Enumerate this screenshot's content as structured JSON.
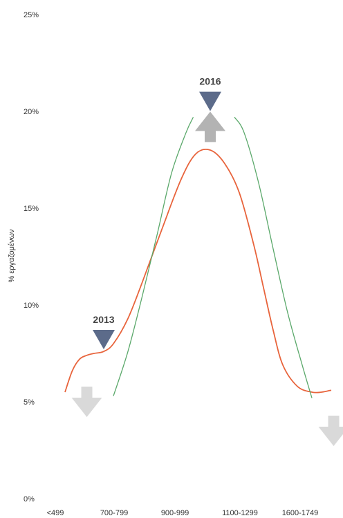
{
  "chart_data": {
    "type": "line",
    "ylabel": "% εργαζομένων",
    "ylim": [
      0,
      25
    ],
    "y_ticks": [
      "0%",
      "5%",
      "10%",
      "15%",
      "20%",
      "25%"
    ],
    "x_ticks": [
      "<499",
      "700-799",
      "900-999",
      "1100-1299",
      "1600-1749"
    ],
    "grid": false,
    "series": [
      {
        "color": "#e8643c",
        "x": [
          0,
          0.15,
          0.3,
          0.45,
          0.6,
          0.8,
          1.0,
          1.3,
          1.6,
          2.0,
          2.4,
          2.7,
          3.0,
          3.3,
          3.6,
          3.9,
          4.1,
          4.3,
          4.5,
          4.8,
          5.1,
          5.3,
          5.5
        ],
        "values": [
          5.5,
          6.6,
          7.2,
          7.4,
          7.5,
          7.6,
          8.0,
          9.3,
          11.2,
          13.9,
          16.5,
          17.8,
          18.0,
          17.3,
          15.8,
          13.1,
          10.9,
          8.7,
          6.9,
          5.8,
          5.5,
          5.5,
          5.6
        ]
      },
      {
        "color": "#5aa86a",
        "x": [
          1.0,
          1.3,
          1.6,
          1.9,
          2.2,
          2.5,
          2.65
        ],
        "values": [
          5.3,
          7.6,
          10.5,
          13.6,
          16.8,
          18.9,
          19.7
        ],
        "segment": "rise"
      },
      {
        "color": "#5aa86a",
        "x": [
          3.5,
          3.7,
          4.0,
          4.3,
          4.6,
          4.9,
          5.1
        ],
        "values": [
          19.7,
          18.9,
          16.3,
          12.9,
          9.6,
          6.9,
          5.2
        ],
        "segment": "fall"
      }
    ],
    "annotations": [
      {
        "text": "2013",
        "x": 0.8,
        "y": 8.0,
        "marker": "triangle-down",
        "color": "#5c6b8a"
      },
      {
        "text": "2016",
        "x": 3.0,
        "y": 20.3,
        "marker": "triangle-down",
        "color": "#5c6b8a"
      }
    ],
    "arrows": [
      {
        "direction": "down",
        "x": 0.45,
        "y": 5.0,
        "color": "#d9d9d9"
      },
      {
        "direction": "up",
        "x": 3.0,
        "y": 19.2,
        "color": "#b3b3b3"
      },
      {
        "direction": "down",
        "x": 5.55,
        "y": 3.5,
        "color": "#d9d9d9"
      }
    ]
  }
}
